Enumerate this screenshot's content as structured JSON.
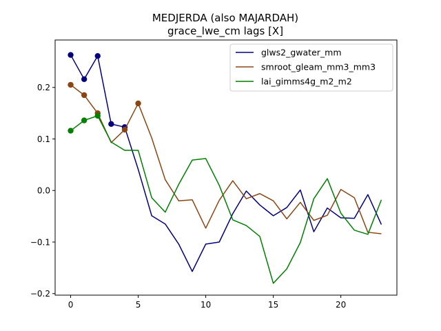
{
  "chart_data": {
    "type": "line",
    "title": "MEDJERDA (also MAJARDAH)",
    "subtitle": "grace_lwe_cm lags [X]",
    "xlabel": "",
    "ylabel": "",
    "xlim": [
      -1.15,
      24.15
    ],
    "ylim": [
      -0.203,
      0.292
    ],
    "xticks": [
      0,
      5,
      10,
      15,
      20
    ],
    "yticks": [
      -0.2,
      -0.1,
      0.0,
      0.1,
      0.2
    ],
    "xtick_labels": [
      "0",
      "5",
      "10",
      "15",
      "20"
    ],
    "ytick_labels": [
      "−0.2",
      "−0.1",
      "0.0",
      "0.1",
      "0.2"
    ],
    "grid": false,
    "legend_position": "top-right",
    "series": [
      {
        "name": "glws2_gwater_mm",
        "color": "#00007f",
        "x": [
          0,
          1,
          2,
          3,
          4,
          5,
          6,
          7,
          8,
          9,
          10,
          11,
          12,
          13,
          14,
          15,
          16,
          17,
          18,
          19,
          20,
          21,
          22,
          23
        ],
        "values": [
          0.263,
          0.216,
          0.261,
          0.129,
          0.123,
          0.041,
          -0.049,
          -0.065,
          -0.104,
          -0.157,
          -0.104,
          -0.1,
          -0.045,
          -0.001,
          -0.028,
          -0.049,
          -0.033,
          0.001,
          -0.08,
          -0.034,
          -0.053,
          -0.054,
          -0.008,
          -0.066
        ],
        "markers": [
          0,
          1,
          2,
          3,
          4
        ]
      },
      {
        "name": "smroot_gleam_mm3_mm3",
        "color": "#8b4513",
        "x": [
          0,
          1,
          2,
          3,
          4,
          5,
          6,
          7,
          8,
          9,
          10,
          11,
          12,
          13,
          14,
          15,
          16,
          17,
          18,
          19,
          20,
          21,
          22,
          23
        ],
        "values": [
          0.205,
          0.185,
          0.15,
          0.093,
          0.118,
          0.169,
          0.102,
          0.021,
          -0.02,
          -0.018,
          -0.073,
          -0.019,
          0.019,
          -0.016,
          -0.006,
          -0.02,
          -0.055,
          -0.023,
          -0.058,
          -0.048,
          0.002,
          -0.014,
          -0.081,
          -0.084
        ],
        "markers": [
          0,
          1,
          2,
          4,
          5
        ]
      },
      {
        "name": "lai_gimms4g_m2_m2",
        "color": "#007f00",
        "x": [
          0,
          1,
          2,
          3,
          4,
          5,
          6,
          7,
          8,
          9,
          10,
          11,
          12,
          13,
          14,
          15,
          16,
          17,
          18,
          19,
          20,
          21,
          22,
          23
        ],
        "values": [
          0.116,
          0.136,
          0.145,
          0.094,
          0.078,
          0.078,
          -0.014,
          -0.042,
          0.012,
          0.059,
          0.062,
          0.01,
          -0.057,
          -0.068,
          -0.089,
          -0.18,
          -0.152,
          -0.101,
          -0.016,
          0.023,
          -0.044,
          -0.077,
          -0.085,
          -0.018
        ],
        "markers": [
          0,
          1,
          2
        ]
      }
    ]
  }
}
